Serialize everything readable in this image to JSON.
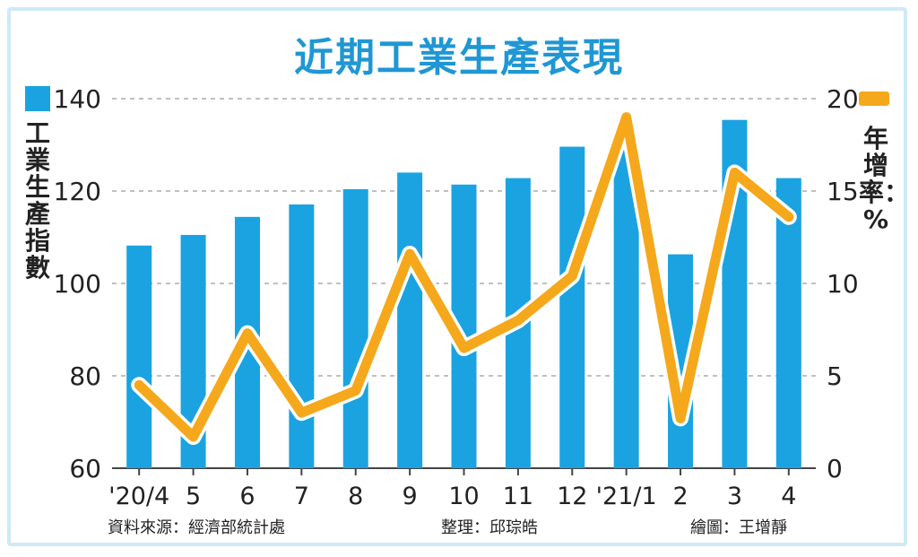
{
  "title": "近期工業生產表現",
  "left_axis_label": "工業生產指數",
  "right_axis_label": "年增率：%",
  "footer": {
    "source": "資料來源：經濟部統計處",
    "editor": "整理：邱琮皓",
    "illustrator": "繪圖：王增靜"
  },
  "colors": {
    "bar": "#1aa3e0",
    "line": "#f5a81b",
    "title": "#1f97d4",
    "grid": "#9a9a9a"
  },
  "chart_data": {
    "type": "bar+line",
    "categories": [
      "'20/4",
      "5",
      "6",
      "7",
      "8",
      "9",
      "10",
      "11",
      "12",
      "'21/1",
      "2",
      "3",
      "4"
    ],
    "series": [
      {
        "type": "bar",
        "axis": "left",
        "values": [
          108.2,
          110.5,
          114.4,
          117.1,
          120.4,
          124.0,
          121.4,
          122.8,
          129.6,
          131.0,
          106.3,
          135.4,
          122.8
        ]
      },
      {
        "type": "line",
        "axis": "right",
        "values": [
          4.5,
          1.7,
          7.3,
          3.0,
          4.2,
          11.6,
          6.5,
          8.0,
          10.4,
          19.0,
          2.7,
          16.0,
          13.6
        ]
      }
    ],
    "left_axis": {
      "ylim": [
        60,
        140
      ],
      "ticks": [
        "60",
        "80",
        "100",
        "120",
        "140"
      ]
    },
    "right_axis": {
      "ylim": [
        0,
        20
      ],
      "ticks": [
        "0",
        "5",
        "10",
        "15",
        "20"
      ]
    },
    "grid": "horizontal dashed"
  }
}
